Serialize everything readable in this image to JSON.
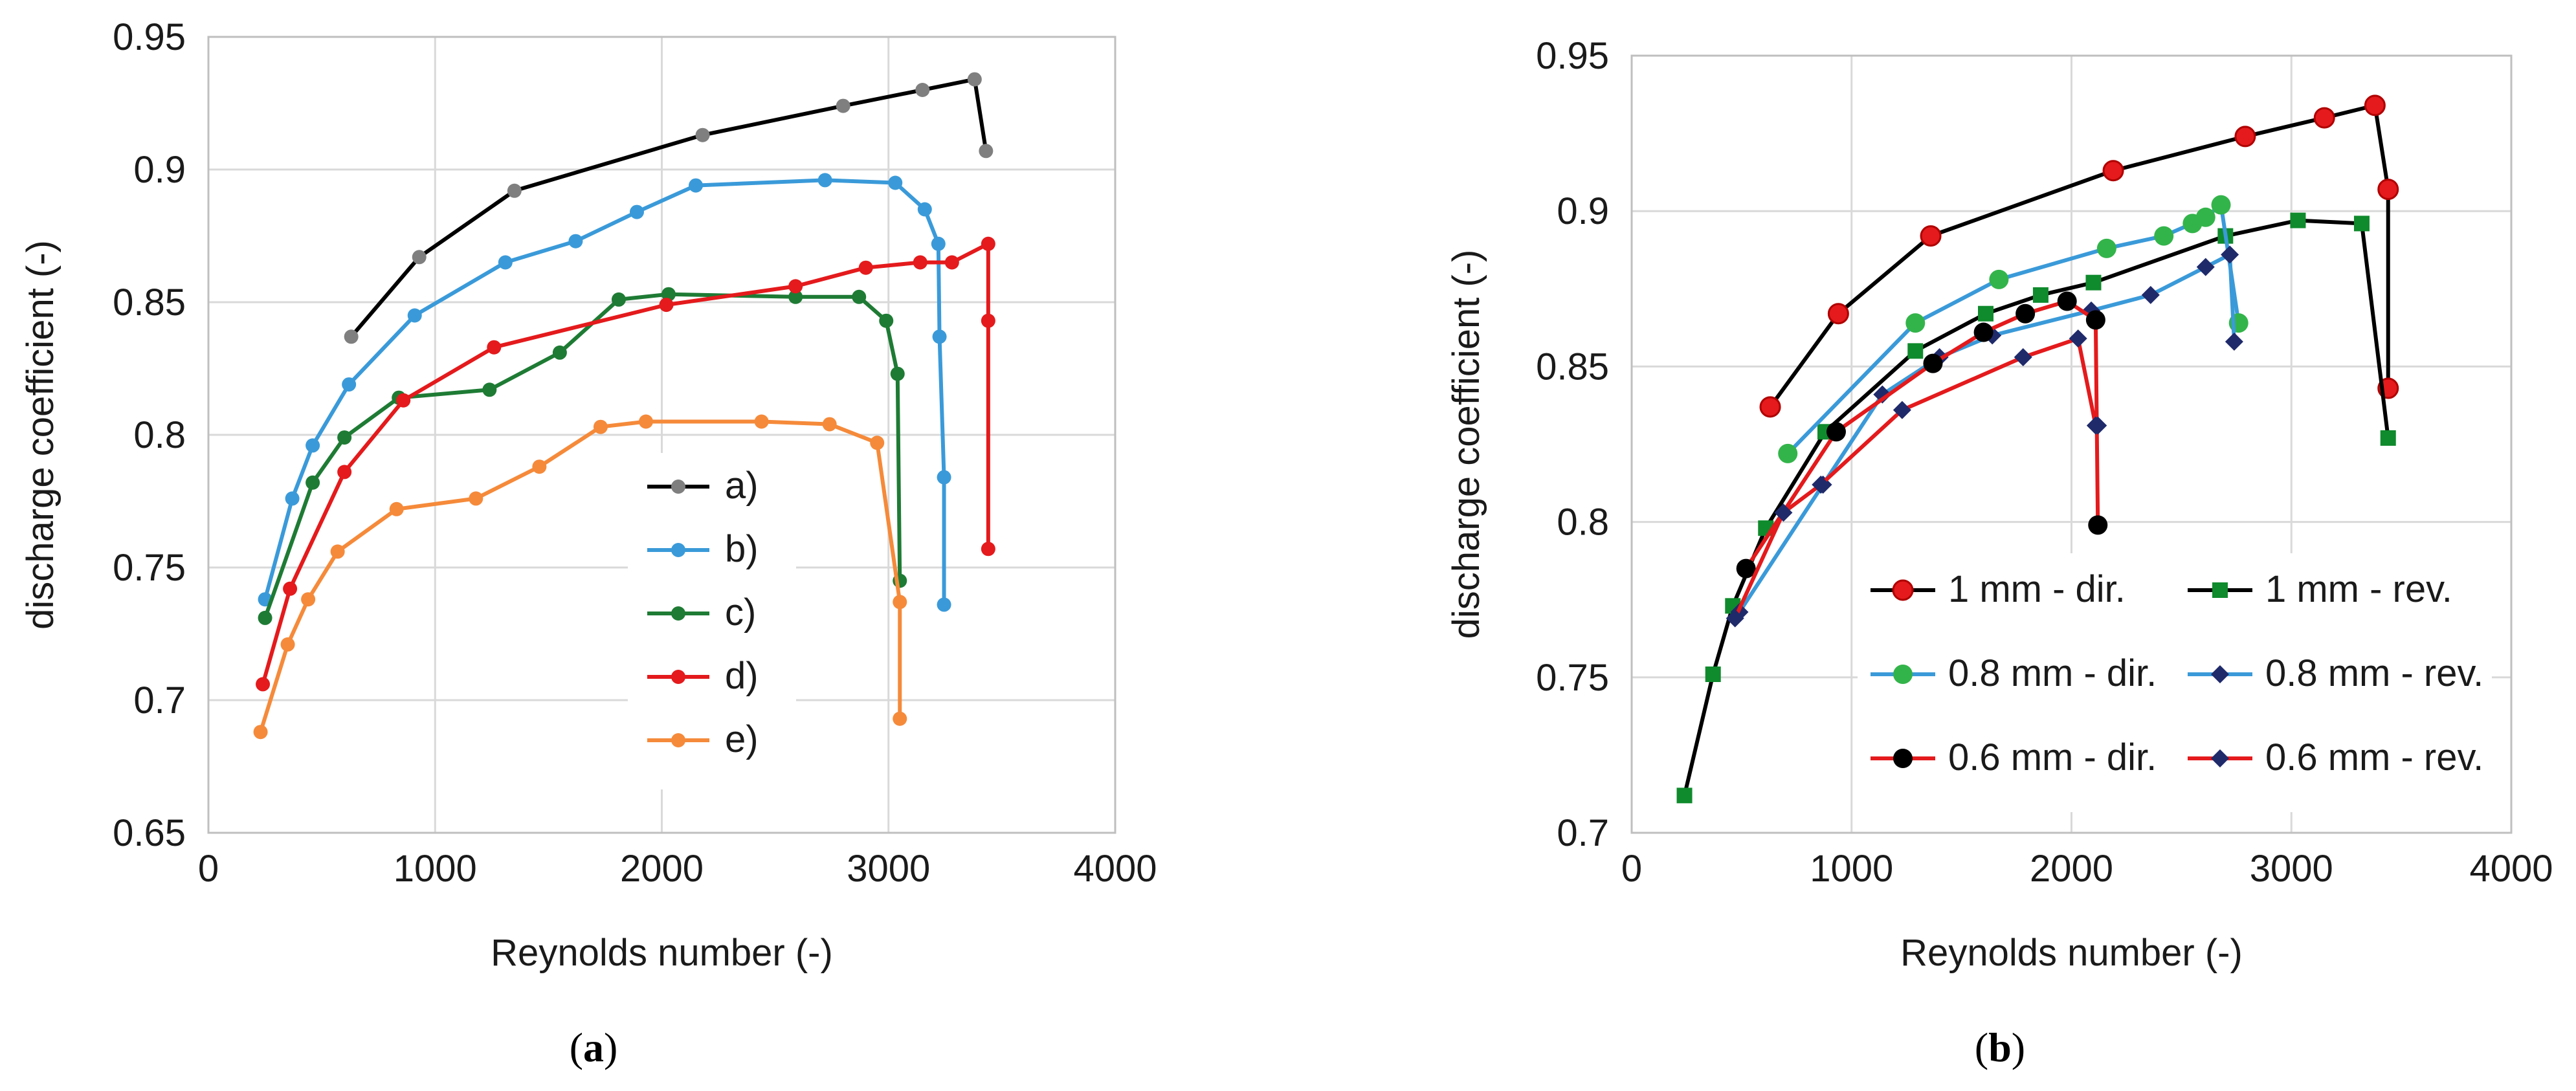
{
  "chart_data": [
    {
      "type": "line",
      "panel_caption": "a",
      "xlabel": "Reynolds number (-)",
      "ylabel": "discharge coefficient (-)",
      "xlim": [
        0,
        4000
      ],
      "ylim": [
        0.65,
        0.95
      ],
      "xticks": [
        0,
        1000,
        2000,
        3000,
        4000
      ],
      "yticks": [
        0.65,
        0.7,
        0.75,
        0.8,
        0.85,
        0.9,
        0.95
      ],
      "ytick_labels": [
        "0.65",
        "0.7",
        "0.75",
        "0.8",
        "0.85",
        "0.9",
        "0.95"
      ],
      "grid": true,
      "legend_position": "center-right",
      "series": [
        {
          "name": "a)",
          "color": "#000000",
          "marker_color": "#7f7f7f",
          "marker": "circle",
          "marker_size": "small",
          "x": [
            630,
            930,
            1350,
            2180,
            2800,
            3150,
            3380,
            3430
          ],
          "y": [
            0.837,
            0.867,
            0.892,
            0.913,
            0.924,
            0.93,
            0.934,
            0.907
          ]
        },
        {
          "name": "b)",
          "color": "#3a9ad9",
          "marker_color": "#3a9ad9",
          "marker": "circle",
          "marker_size": "small",
          "x": [
            250,
            370,
            460,
            620,
            910,
            1310,
            1620,
            1890,
            2150,
            2720,
            3030,
            3160,
            3220,
            3225,
            3245,
            3245
          ],
          "y": [
            0.738,
            0.776,
            0.796,
            0.819,
            0.845,
            0.865,
            0.873,
            0.884,
            0.894,
            0.896,
            0.895,
            0.885,
            0.872,
            0.837,
            0.784,
            0.736
          ]
        },
        {
          "name": "c)",
          "color": "#1e7b34",
          "marker_color": "#1e7b34",
          "marker": "circle",
          "marker_size": "small",
          "x": [
            250,
            460,
            600,
            840,
            1240,
            1550,
            1810,
            2030,
            2590,
            2870,
            2990,
            3040,
            3050
          ],
          "y": [
            0.731,
            0.782,
            0.799,
            0.814,
            0.817,
            0.831,
            0.851,
            0.853,
            0.852,
            0.852,
            0.843,
            0.823,
            0.745
          ]
        },
        {
          "name": "d)",
          "color": "#e41a1c",
          "marker_color": "#e41a1c",
          "marker": "circle",
          "marker_size": "small",
          "x": [
            240,
            360,
            600,
            860,
            1260,
            2020,
            2590,
            2900,
            3140,
            3280,
            3440,
            3440,
            3440
          ],
          "y": [
            0.706,
            0.742,
            0.786,
            0.813,
            0.833,
            0.849,
            0.856,
            0.863,
            0.865,
            0.865,
            0.872,
            0.843,
            0.757
          ]
        },
        {
          "name": "e)",
          "color": "#f58a3a",
          "marker_color": "#f58a3a",
          "marker": "circle",
          "marker_size": "small",
          "x": [
            230,
            350,
            440,
            570,
            830,
            1180,
            1460,
            1730,
            1930,
            2440,
            2740,
            2950,
            3050,
            3050
          ],
          "y": [
            0.688,
            0.721,
            0.738,
            0.756,
            0.772,
            0.776,
            0.788,
            0.803,
            0.805,
            0.805,
            0.804,
            0.797,
            0.737,
            0.693
          ]
        }
      ]
    },
    {
      "type": "line",
      "panel_caption": "b",
      "xlabel": "Reynolds number (-)",
      "ylabel": "discharge coefficient (-)",
      "xlim": [
        0,
        4000
      ],
      "ylim": [
        0.7,
        0.95
      ],
      "xticks": [
        0,
        1000,
        2000,
        3000,
        4000
      ],
      "yticks": [
        0.7,
        0.75,
        0.8,
        0.85,
        0.9,
        0.95
      ],
      "ytick_labels": [
        "0.7",
        "0.75",
        "0.8",
        "0.85",
        "0.9",
        "0.95"
      ],
      "grid": true,
      "legend_position": "lower-right",
      "series": [
        {
          "name": "1 mm - dir.",
          "color": "#000000",
          "marker_color": "#e41a1c",
          "marker": "circle",
          "marker_size": "large",
          "x": [
            630,
            940,
            1360,
            2190,
            2790,
            3150,
            3380,
            3440,
            3440
          ],
          "y": [
            0.837,
            0.867,
            0.892,
            0.913,
            0.924,
            0.93,
            0.934,
            0.907,
            0.843
          ]
        },
        {
          "name": "1 mm - rev.",
          "color": "#000000",
          "marker_color": "#0f8a2c",
          "marker": "square",
          "marker_size": "large",
          "x": [
            240,
            370,
            460,
            610,
            880,
            1290,
            1610,
            1860,
            2100,
            2700,
            3030,
            3320,
            3440
          ],
          "y": [
            0.712,
            0.751,
            0.773,
            0.798,
            0.829,
            0.855,
            0.867,
            0.873,
            0.877,
            0.892,
            0.897,
            0.896,
            0.827
          ]
        },
        {
          "name": "0.8 mm - dir.",
          "color": "#3a9ad9",
          "marker_color": "#33b44a",
          "marker": "circle",
          "marker_size": "large",
          "x": [
            710,
            1290,
            1670,
            2160,
            2420,
            2550,
            2610,
            2680,
            2760
          ],
          "y": [
            0.822,
            0.864,
            0.878,
            0.888,
            0.892,
            0.896,
            0.898,
            0.902,
            0.864
          ]
        },
        {
          "name": "0.8 mm - rev.",
          "color": "#3a9ad9",
          "marker_color": "#1f2a6b",
          "marker": "diamond",
          "marker_size": "large",
          "x": [
            490,
            870,
            1140,
            1400,
            1640,
            2090,
            2360,
            2610,
            2720,
            2740
          ],
          "y": [
            0.771,
            0.812,
            0.841,
            0.853,
            0.86,
            0.868,
            0.873,
            0.882,
            0.886,
            0.858
          ]
        },
        {
          "name": "0.6 mm - dir.",
          "color": "#e41a1c",
          "marker_color": "#000000",
          "marker": "circle",
          "marker_size": "large",
          "x": [
            520,
            930,
            1370,
            1600,
            1790,
            1980,
            2110,
            2120
          ],
          "y": [
            0.785,
            0.829,
            0.851,
            0.861,
            0.867,
            0.871,
            0.865,
            0.799
          ]
        },
        {
          "name": "0.6 mm - rev.",
          "color": "#e41a1c",
          "marker_color": "#1f2a6b",
          "marker": "diamond",
          "marker_size": "large",
          "x": [
            470,
            690,
            860,
            1230,
            1780,
            2030,
            2110,
            2120
          ],
          "y": [
            0.769,
            0.803,
            0.812,
            0.836,
            0.853,
            0.859,
            0.831,
            0.831
          ]
        }
      ]
    }
  ]
}
